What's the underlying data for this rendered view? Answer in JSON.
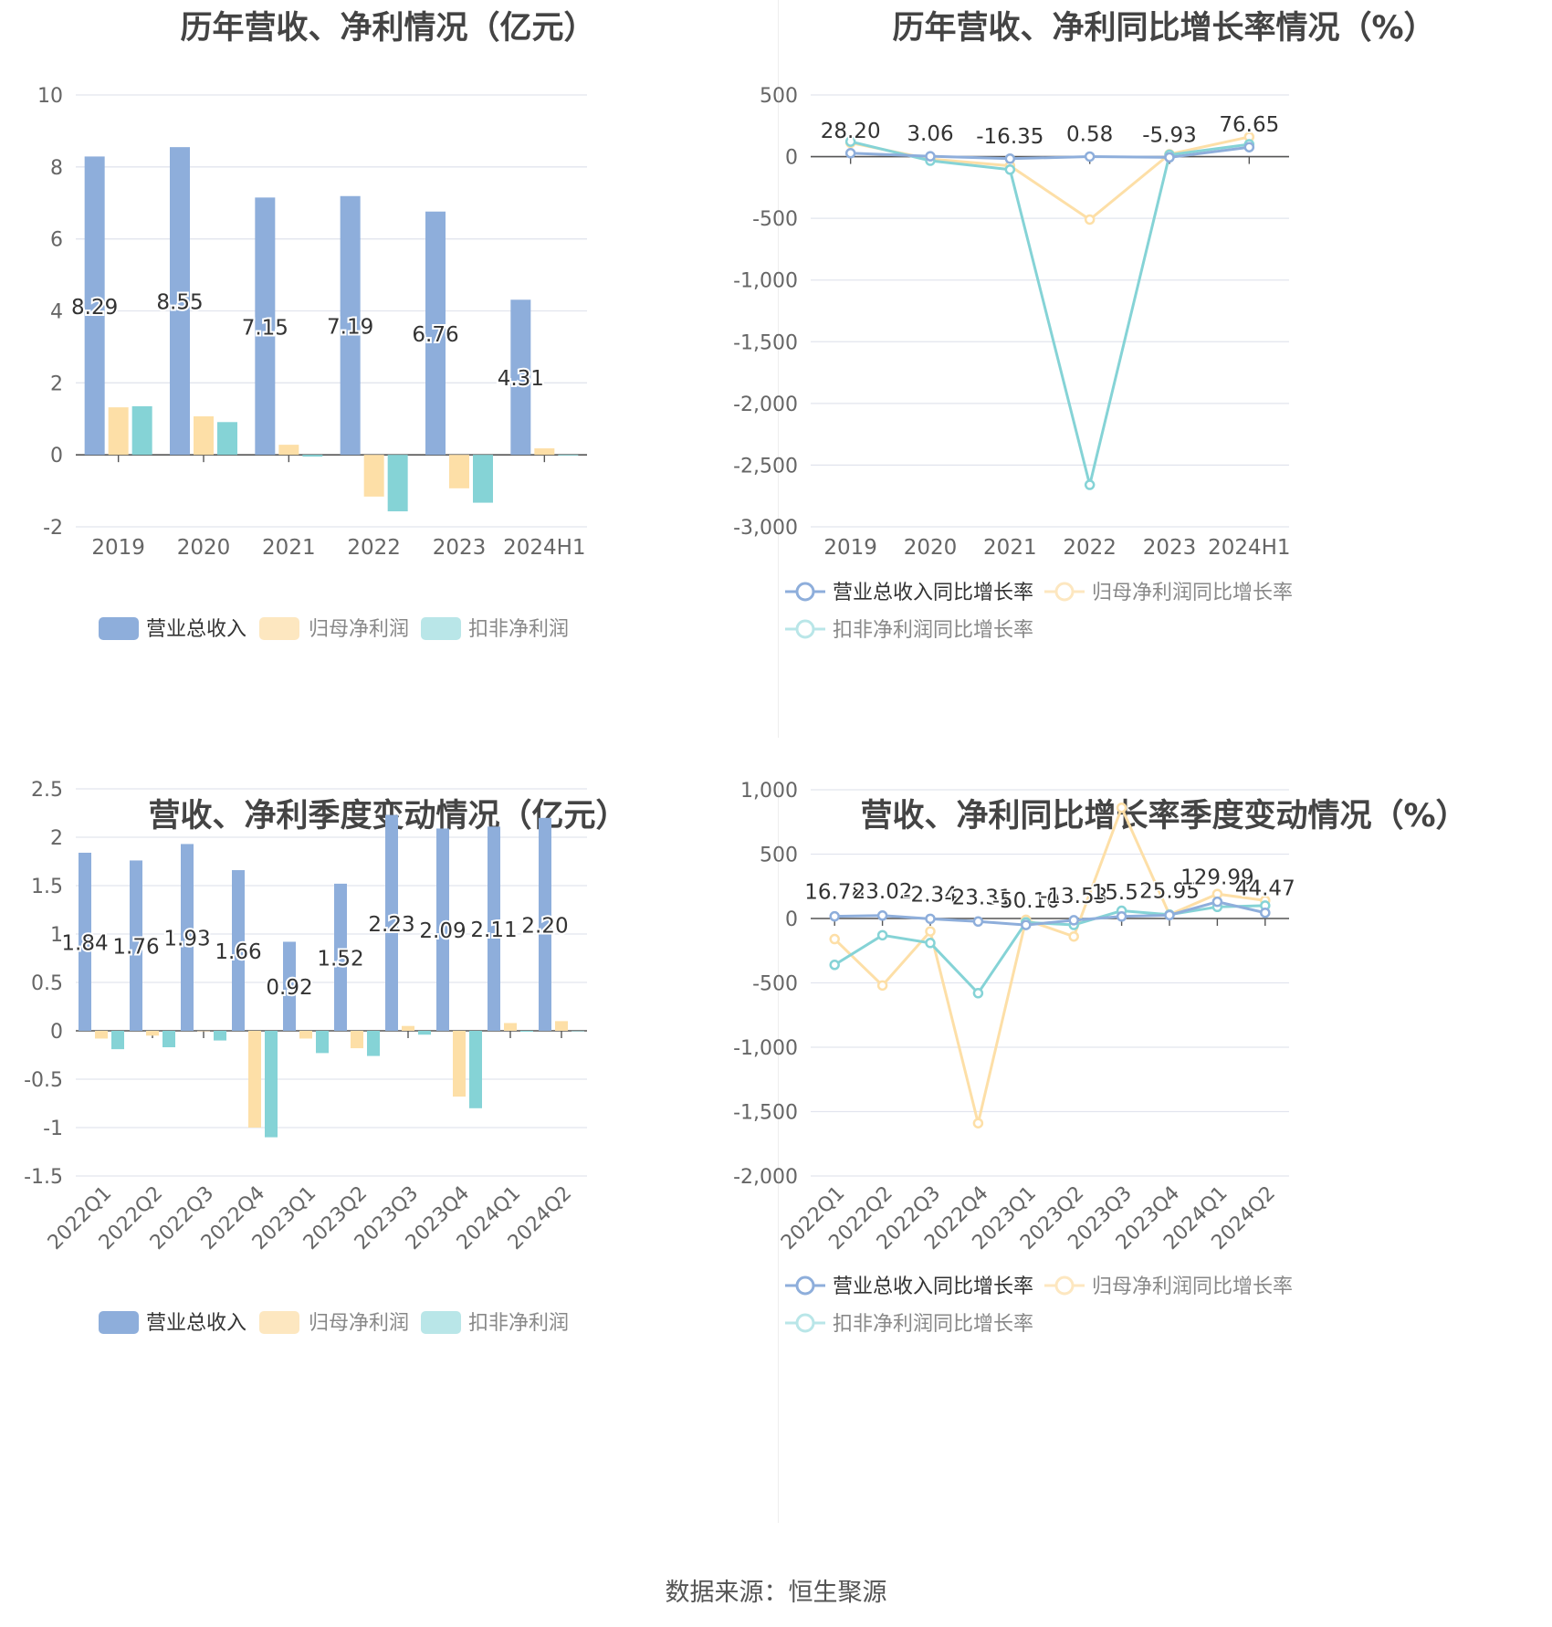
{
  "colors": {
    "revenue": "#8eaedb",
    "net": "#fddfa7",
    "deducted": "#85d3d6",
    "grid": "#e2e5ee",
    "axis": "#666666",
    "text": "#333333"
  },
  "footer": {
    "source": "数据来源：恒生聚源"
  },
  "chart_data": [
    {
      "type": "bar",
      "title": "历年营收、净利情况（亿元）",
      "categories": [
        "2019",
        "2020",
        "2021",
        "2022",
        "2023",
        "2024H1"
      ],
      "ylim": [
        -2,
        10
      ],
      "yticks": [
        -2,
        0,
        2,
        4,
        6,
        8,
        10
      ],
      "grid": true,
      "legend_position": "bottom",
      "series": [
        {
          "name": "营业总收入",
          "values": [
            8.29,
            8.55,
            7.15,
            7.19,
            6.76,
            4.31
          ],
          "labels": [
            "8.29",
            "8.55",
            "7.15",
            "7.19",
            "6.76",
            "4.31"
          ]
        },
        {
          "name": "归母净利润",
          "values": [
            1.32,
            1.07,
            0.28,
            -1.16,
            -0.93,
            0.18
          ]
        },
        {
          "name": "扣非净利润",
          "values": [
            1.35,
            0.91,
            -0.05,
            -1.57,
            -1.33,
            -0.02
          ]
        }
      ]
    },
    {
      "type": "line",
      "title": "历年营收、净利同比增长率情况（%）",
      "categories": [
        "2019",
        "2020",
        "2021",
        "2022",
        "2023",
        "2024H1"
      ],
      "ylim": [
        -3000,
        500
      ],
      "yticks": [
        -3000,
        -2500,
        -2000,
        -1500,
        -1000,
        -500,
        0,
        500
      ],
      "ytick_labels": [
        "-3,000",
        "-2,500",
        "-2,000",
        "-1,500",
        "-1,000",
        "-500",
        "0",
        "500"
      ],
      "grid": true,
      "legend_position": "bottom",
      "series": [
        {
          "name": "营业总收入同比增长率",
          "values": [
            28.2,
            3.06,
            -16.35,
            0.58,
            -5.93,
            76.65
          ],
          "labels": [
            "28.20",
            "3.06",
            "-16.35",
            "0.58",
            "-5.93",
            "76.65"
          ]
        },
        {
          "name": "归母净利润同比增长率",
          "values": [
            112,
            -19,
            -74,
            -510,
            20,
            160
          ]
        },
        {
          "name": "扣非净利润同比增长率",
          "values": [
            122,
            -33,
            -105,
            -2660,
            15,
            100
          ]
        }
      ]
    },
    {
      "type": "bar",
      "title": "营收、净利季度变动情况（亿元）",
      "categories": [
        "2022Q1",
        "2022Q2",
        "2022Q3",
        "2022Q4",
        "2023Q1",
        "2023Q2",
        "2023Q3",
        "2023Q4",
        "2024Q1",
        "2024Q2"
      ],
      "ylim": [
        -1.5,
        2.5
      ],
      "yticks": [
        -1.5,
        -1,
        -0.5,
        0,
        0.5,
        1,
        1.5,
        2,
        2.5
      ],
      "grid": true,
      "legend_position": "bottom",
      "series": [
        {
          "name": "营业总收入",
          "values": [
            1.84,
            1.76,
            1.93,
            1.66,
            0.92,
            1.52,
            2.23,
            2.09,
            2.11,
            2.2
          ],
          "labels": [
            "1.84",
            "1.76",
            "1.93",
            "1.66",
            "0.92",
            "1.52",
            "2.23",
            "2.09",
            "2.11",
            "2.20"
          ]
        },
        {
          "name": "归母净利润",
          "values": [
            -0.08,
            -0.05,
            0,
            -1.0,
            -0.08,
            -0.18,
            0.05,
            -0.68,
            0.08,
            0.1
          ]
        },
        {
          "name": "扣非净利润",
          "values": [
            -0.19,
            -0.17,
            -0.1,
            -1.1,
            -0.23,
            -0.26,
            -0.04,
            -0.8,
            -0.01,
            0
          ]
        }
      ]
    },
    {
      "type": "line",
      "title": "营收、净利同比增长率季度变动情况（%）",
      "categories": [
        "2022Q1",
        "2022Q2",
        "2022Q3",
        "2022Q4",
        "2023Q1",
        "2023Q2",
        "2023Q3",
        "2023Q4",
        "2024Q1",
        "2024Q2"
      ],
      "ylim": [
        -2000,
        1000
      ],
      "yticks": [
        -2000,
        -1500,
        -1000,
        -500,
        0,
        500,
        1000
      ],
      "ytick_labels": [
        "-2,000",
        "-1,500",
        "-1,000",
        "-500",
        "0",
        "500",
        "1,000"
      ],
      "grid": true,
      "legend_position": "bottom",
      "series": [
        {
          "name": "营业总收入同比增长率",
          "values": [
            16.78,
            23.02,
            -2.34,
            -23.31,
            -50.1,
            -13.53,
            15.57,
            25.95,
            129.99,
            44.47
          ],
          "labels": [
            "16.78",
            "23.02",
            "-2.34",
            "-23.31",
            "-50.10",
            "-13.53",
            "15.57",
            "25.95",
            "129.99",
            "44.47"
          ]
        },
        {
          "name": "归母净利润同比增长率",
          "values": [
            -160,
            -520,
            -100,
            -1590,
            -10,
            -140,
            860,
            30,
            190,
            140
          ]
        },
        {
          "name": "扣非净利润同比增长率",
          "values": [
            -360,
            -130,
            -190,
            -580,
            -30,
            -50,
            60,
            30,
            90,
            100
          ]
        }
      ]
    }
  ]
}
